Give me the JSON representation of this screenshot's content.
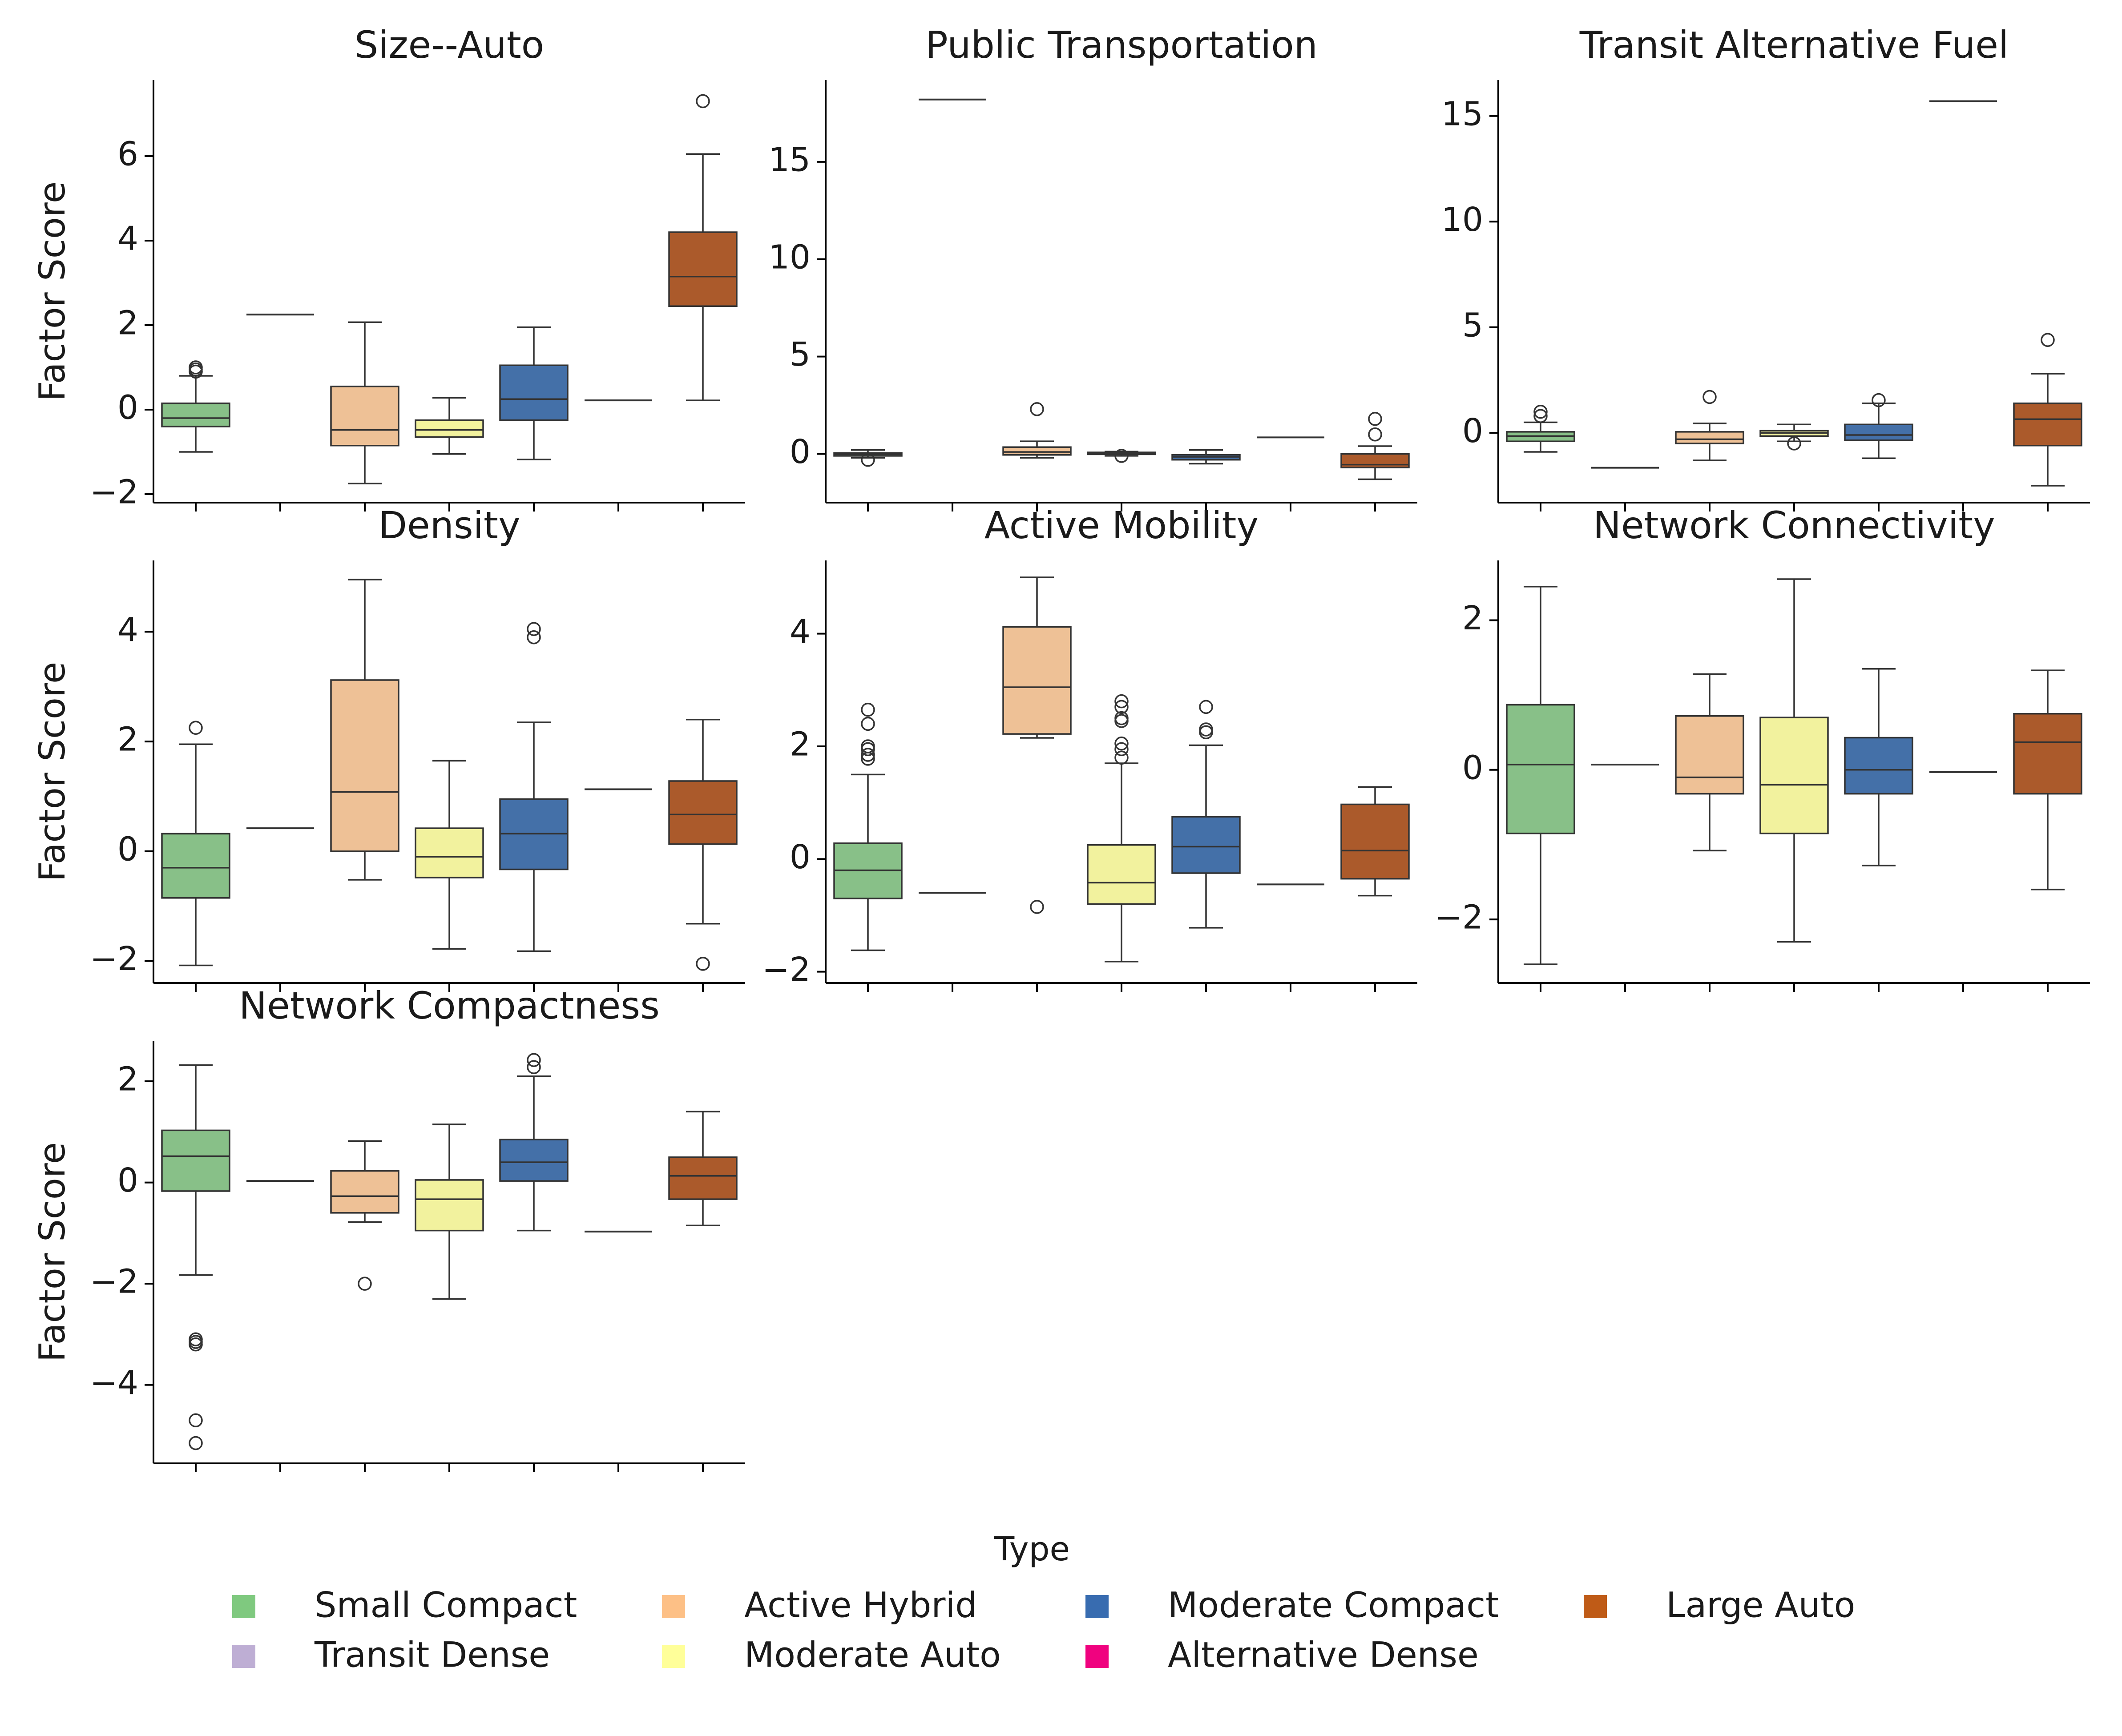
{
  "chart_data": [
    {
      "type": "box",
      "title": "Size--Auto",
      "ylabel": "Factor Score",
      "ylim": [
        -2.2,
        7.8
      ],
      "yticks": [
        -2,
        0,
        2,
        4,
        6
      ],
      "categories": [
        "Small Compact",
        "Transit Dense",
        "Active Hybrid",
        "Moderate Auto",
        "Moderate Compact",
        "Alternative Dense",
        "Large Auto"
      ],
      "boxes": [
        {
          "low": -1.0,
          "q1": -0.4,
          "median": -0.2,
          "q3": 0.15,
          "high": 0.8,
          "outliers": [
            0.9,
            0.95,
            1.0
          ]
        },
        {
          "single": 2.25
        },
        {
          "low": -1.75,
          "q1": -0.85,
          "median": -0.48,
          "q3": 0.55,
          "high": 2.07,
          "outliers": []
        },
        {
          "low": -1.05,
          "q1": -0.65,
          "median": -0.48,
          "q3": -0.25,
          "high": 0.28,
          "outliers": []
        },
        {
          "low": -1.18,
          "q1": -0.25,
          "median": 0.25,
          "q3": 1.05,
          "high": 1.95,
          "outliers": []
        },
        {
          "single": 0.22
        },
        {
          "low": 0.22,
          "q1": 2.45,
          "median": 3.15,
          "q3": 4.2,
          "high": 6.05,
          "outliers": [
            7.3
          ]
        }
      ]
    },
    {
      "type": "box",
      "title": "Public Transportation",
      "ylabel": "",
      "ylim": [
        -2.5,
        19.2
      ],
      "yticks": [
        0,
        5,
        10,
        15
      ],
      "categories": [
        "Small Compact",
        "Transit Dense",
        "Active Hybrid",
        "Moderate Auto",
        "Moderate Compact",
        "Alternative Dense",
        "Large Auto"
      ],
      "boxes": [
        {
          "low": -0.2,
          "q1": -0.1,
          "median": -0.02,
          "q3": 0.05,
          "high": 0.2,
          "outliers": [
            -0.3
          ]
        },
        {
          "single": 18.2
        },
        {
          "low": -0.2,
          "q1": -0.05,
          "median": 0.1,
          "q3": 0.35,
          "high": 0.65,
          "outliers": [
            2.3
          ]
        },
        {
          "low": -0.1,
          "q1": -0.02,
          "median": 0.03,
          "q3": 0.08,
          "high": 0.12,
          "outliers": [
            -0.1
          ]
        },
        {
          "low": -0.5,
          "q1": -0.3,
          "median": -0.15,
          "q3": -0.05,
          "high": 0.2,
          "outliers": []
        },
        {
          "single": 0.85
        },
        {
          "low": -1.3,
          "q1": -0.7,
          "median": -0.55,
          "q3": 0.0,
          "high": 0.4,
          "outliers": [
            1.0,
            1.8
          ]
        }
      ]
    },
    {
      "type": "box",
      "title": "Transit Alternative Fuel",
      "ylabel": "",
      "ylim": [
        -3.3,
        16.7
      ],
      "yticks": [
        0,
        5,
        10,
        15
      ],
      "categories": [
        "Small Compact",
        "Transit Dense",
        "Active Hybrid",
        "Moderate Auto",
        "Moderate Compact",
        "Alternative Dense",
        "Large Auto"
      ],
      "boxes": [
        {
          "low": -0.9,
          "q1": -0.4,
          "median": -0.15,
          "q3": 0.05,
          "high": 0.5,
          "outliers": [
            0.8,
            1.0
          ]
        },
        {
          "single": -1.65
        },
        {
          "low": -1.3,
          "q1": -0.5,
          "median": -0.3,
          "q3": 0.05,
          "high": 0.45,
          "outliers": [
            1.7
          ]
        },
        {
          "low": -0.4,
          "q1": -0.15,
          "median": 0.0,
          "q3": 0.1,
          "high": 0.4,
          "outliers": [
            -0.5
          ]
        },
        {
          "low": -1.2,
          "q1": -0.35,
          "median": -0.1,
          "q3": 0.4,
          "high": 1.4,
          "outliers": [
            1.55
          ]
        },
        {
          "single": 15.7
        },
        {
          "low": -2.5,
          "q1": -0.6,
          "median": 0.65,
          "q3": 1.4,
          "high": 2.8,
          "outliers": [
            4.4
          ]
        }
      ]
    },
    {
      "type": "box",
      "title": "Density",
      "ylabel": "Factor Score",
      "ylim": [
        -2.4,
        5.3
      ],
      "yticks": [
        -2,
        0,
        2,
        4
      ],
      "categories": [
        "Small Compact",
        "Transit Dense",
        "Active Hybrid",
        "Moderate Auto",
        "Moderate Compact",
        "Alternative Dense",
        "Large Auto"
      ],
      "boxes": [
        {
          "low": -2.08,
          "q1": -0.85,
          "median": -0.3,
          "q3": 0.32,
          "high": 1.95,
          "outliers": [
            2.25
          ]
        },
        {
          "single": 0.42
        },
        {
          "low": -0.52,
          "q1": 0.0,
          "median": 1.08,
          "q3": 3.12,
          "high": 4.95,
          "outliers": []
        },
        {
          "low": -1.78,
          "q1": -0.48,
          "median": -0.1,
          "q3": 0.42,
          "high": 1.65,
          "outliers": []
        },
        {
          "low": -1.82,
          "q1": -0.33,
          "median": 0.32,
          "q3": 0.95,
          "high": 2.35,
          "outliers": [
            3.9,
            4.05
          ]
        },
        {
          "single": 1.13
        },
        {
          "low": -1.32,
          "q1": 0.13,
          "median": 0.67,
          "q3": 1.28,
          "high": 2.4,
          "outliers": [
            -2.05
          ]
        }
      ]
    },
    {
      "type": "box",
      "title": "Active Mobility",
      "ylabel": "",
      "ylim": [
        -2.2,
        5.3
      ],
      "yticks": [
        -2,
        0,
        2,
        4
      ],
      "categories": [
        "Small Compact",
        "Transit Dense",
        "Active Hybrid",
        "Moderate Auto",
        "Moderate Compact",
        "Alternative Dense",
        "Large Auto"
      ],
      "boxes": [
        {
          "low": -1.62,
          "q1": -0.7,
          "median": -0.2,
          "q3": 0.28,
          "high": 1.5,
          "outliers": [
            1.78,
            1.85,
            1.95,
            2.0,
            2.4,
            2.65
          ]
        },
        {
          "single": -0.6
        },
        {
          "low": 2.15,
          "q1": 2.22,
          "median": 3.05,
          "q3": 4.12,
          "high": 5.0,
          "outliers": [
            -0.85
          ]
        },
        {
          "low": -1.82,
          "q1": -0.8,
          "median": -0.42,
          "q3": 0.25,
          "high": 1.7,
          "outliers": [
            1.8,
            1.95,
            2.05,
            2.45,
            2.5,
            2.7,
            2.8
          ]
        },
        {
          "low": -1.22,
          "q1": -0.25,
          "median": 0.22,
          "q3": 0.75,
          "high": 2.02,
          "outliers": [
            2.25,
            2.3,
            2.7
          ]
        },
        {
          "single": -0.45
        },
        {
          "low": -0.65,
          "q1": -0.35,
          "median": 0.15,
          "q3": 0.97,
          "high": 1.28,
          "outliers": []
        }
      ]
    },
    {
      "type": "box",
      "title": "Network Connectivity",
      "ylabel": "",
      "ylim": [
        -2.85,
        2.8
      ],
      "yticks": [
        -2,
        0,
        2
      ],
      "categories": [
        "Small Compact",
        "Transit Dense",
        "Active Hybrid",
        "Moderate Auto",
        "Moderate Compact",
        "Alternative Dense",
        "Large Auto"
      ],
      "boxes": [
        {
          "low": -2.6,
          "q1": -0.85,
          "median": 0.07,
          "q3": 0.87,
          "high": 2.45,
          "outliers": []
        },
        {
          "single": 0.07
        },
        {
          "low": -1.08,
          "q1": -0.32,
          "median": -0.1,
          "q3": 0.72,
          "high": 1.28,
          "outliers": []
        },
        {
          "low": -2.3,
          "q1": -0.85,
          "median": -0.2,
          "q3": 0.7,
          "high": 2.55,
          "outliers": []
        },
        {
          "low": -1.28,
          "q1": -0.32,
          "median": 0.0,
          "q3": 0.43,
          "high": 1.35,
          "outliers": []
        },
        {
          "single": -0.03
        },
        {
          "low": -1.6,
          "q1": -0.32,
          "median": 0.37,
          "q3": 0.75,
          "high": 1.33,
          "outliers": []
        }
      ]
    },
    {
      "type": "box",
      "title": "Network Compactness",
      "ylabel": "Factor Score",
      "ylim": [
        -5.55,
        2.8
      ],
      "yticks": [
        -4,
        -2,
        0,
        2
      ],
      "categories": [
        "Small Compact",
        "Transit Dense",
        "Active Hybrid",
        "Moderate Auto",
        "Moderate Compact",
        "Alternative Dense",
        "Large Auto"
      ],
      "boxes": [
        {
          "low": -1.83,
          "q1": -0.17,
          "median": 0.52,
          "q3": 1.03,
          "high": 2.32,
          "outliers": [
            -3.1,
            -3.15,
            -3.2,
            -4.7,
            -5.15
          ]
        },
        {
          "single": 0.03
        },
        {
          "low": -0.78,
          "q1": -0.6,
          "median": -0.27,
          "q3": 0.23,
          "high": 0.82,
          "outliers": [
            -2.0
          ]
        },
        {
          "low": -2.3,
          "q1": -0.95,
          "median": -0.33,
          "q3": 0.05,
          "high": 1.15,
          "outliers": []
        },
        {
          "low": -0.95,
          "q1": 0.03,
          "median": 0.4,
          "q3": 0.85,
          "high": 2.1,
          "outliers": [
            2.28,
            2.42
          ]
        },
        {
          "single": -0.97
        },
        {
          "low": -0.85,
          "q1": -0.33,
          "median": 0.13,
          "q3": 0.5,
          "high": 1.4,
          "outliers": []
        }
      ]
    }
  ],
  "legend": {
    "title": "Type",
    "placement": "bottom-center",
    "items": [
      {
        "label": "Small Compact",
        "color": "#7fc97f"
      },
      {
        "label": "Transit Dense",
        "color": "#beaed4"
      },
      {
        "label": "Active Hybrid",
        "color": "#fdc086"
      },
      {
        "label": "Moderate Auto",
        "color": "#ffff99"
      },
      {
        "label": "Moderate Compact",
        "color": "#386cb0"
      },
      {
        "label": "Alternative Dense",
        "color": "#f0027f"
      },
      {
        "label": "Large Auto",
        "color": "#bf5b17"
      }
    ]
  },
  "colors": {
    "box_fills": [
      "#88c088",
      "#beaed4",
      "#eec196",
      "#f2f29e",
      "#4470a8",
      "#f0027f",
      "#ab5a2b"
    ],
    "line": "#333333"
  }
}
